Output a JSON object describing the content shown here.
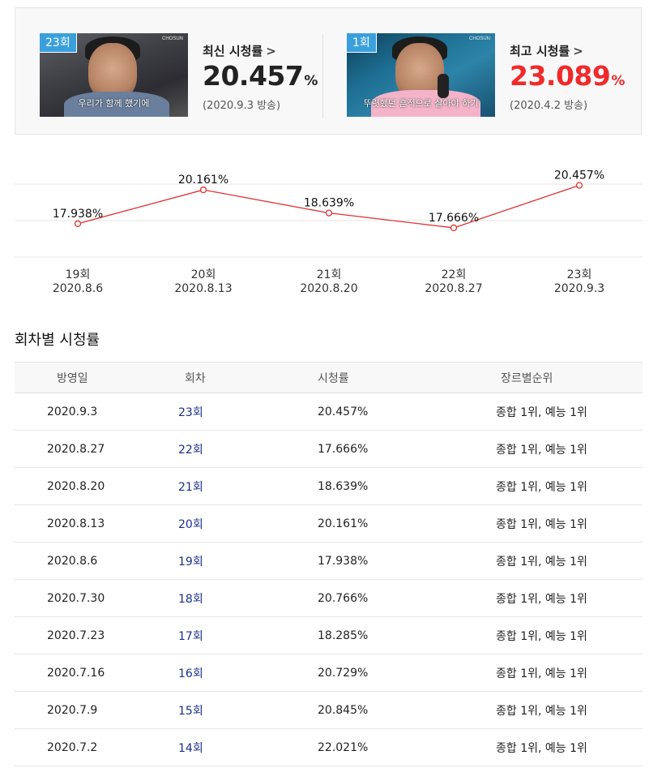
{
  "summary": {
    "latest": {
      "badge": "23회",
      "subtitle": "우리가 함께 했기에",
      "brand": "CHOSUN",
      "label": "최신 시청률",
      "chevron": ">",
      "value": "20.457",
      "unit": "%",
      "date": "(2020.9.3 방송)"
    },
    "best": {
      "badge": "1회",
      "subtitle": "뚜렷했던 흔적으로 살아야 하기",
      "brand": "CHOSUN",
      "label": "최고 시청률",
      "chevron": ">",
      "value": "23.089",
      "unit": "%",
      "date": "(2020.4.2 방송)"
    }
  },
  "chart_data": {
    "type": "line",
    "categories": [
      "19회",
      "20회",
      "21회",
      "22회",
      "23회"
    ],
    "dates": [
      "2020.8.6",
      "2020.8.13",
      "2020.8.20",
      "2020.8.27",
      "2020.9.3"
    ],
    "values": [
      17.938,
      20.161,
      18.639,
      17.666,
      20.457
    ],
    "data_labels": [
      "17.938%",
      "20.161%",
      "18.639%",
      "17.666%",
      "20.457%"
    ],
    "ylim": [
      15.8,
      22.4
    ],
    "grid": true,
    "line_color": "#e03030"
  },
  "table": {
    "title": "회차별 시청률",
    "headers": [
      "방영일",
      "회차",
      "시청률",
      "장르별순위"
    ],
    "rows": [
      [
        "2020.9.3",
        "23회",
        "20.457%",
        "종합 1위, 예능 1위"
      ],
      [
        "2020.8.27",
        "22회",
        "17.666%",
        "종합 1위, 예능 1위"
      ],
      [
        "2020.8.20",
        "21회",
        "18.639%",
        "종합 1위, 예능 1위"
      ],
      [
        "2020.8.13",
        "20회",
        "20.161%",
        "종합 1위, 예능 1위"
      ],
      [
        "2020.8.6",
        "19회",
        "17.938%",
        "종합 1위, 예능 1위"
      ],
      [
        "2020.7.30",
        "18회",
        "20.766%",
        "종합 1위, 예능 1위"
      ],
      [
        "2020.7.23",
        "17회",
        "18.285%",
        "종합 1위, 예능 1위"
      ],
      [
        "2020.7.16",
        "16회",
        "20.729%",
        "종합 1위, 예능 1위"
      ],
      [
        "2020.7.9",
        "15회",
        "20.845%",
        "종합 1위, 예능 1위"
      ],
      [
        "2020.7.2",
        "14회",
        "22.021%",
        "종합 1위, 예능 1위"
      ]
    ]
  }
}
